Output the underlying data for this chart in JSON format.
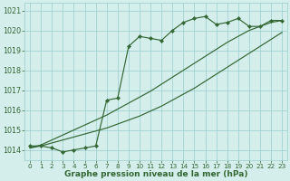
{
  "x": [
    0,
    1,
    2,
    3,
    4,
    5,
    6,
    7,
    8,
    9,
    10,
    11,
    12,
    13,
    14,
    15,
    16,
    17,
    18,
    19,
    20,
    21,
    22,
    23
  ],
  "line_marked": [
    1014.2,
    1014.2,
    1014.1,
    1013.9,
    1014.0,
    1014.1,
    1014.2,
    1016.5,
    1016.6,
    1019.2,
    1019.7,
    1019.6,
    1019.5,
    1020.0,
    1020.4,
    1020.6,
    1020.7,
    1020.3,
    1020.4,
    1020.6,
    1020.2,
    1020.2,
    1020.5,
    1020.5
  ],
  "line_trend_low": [
    1014.1,
    1014.2,
    1014.35,
    1014.5,
    1014.65,
    1014.8,
    1014.95,
    1015.1,
    1015.3,
    1015.5,
    1015.7,
    1015.95,
    1016.2,
    1016.5,
    1016.8,
    1017.1,
    1017.45,
    1017.8,
    1018.15,
    1018.5,
    1018.85,
    1019.2,
    1019.55,
    1019.9
  ],
  "line_trend_high": [
    1014.1,
    1014.25,
    1014.5,
    1014.75,
    1015.0,
    1015.25,
    1015.5,
    1015.75,
    1016.05,
    1016.35,
    1016.65,
    1016.95,
    1017.3,
    1017.65,
    1018.0,
    1018.35,
    1018.7,
    1019.05,
    1019.4,
    1019.7,
    1020.0,
    1020.2,
    1020.4,
    1020.5
  ],
  "line_color": "#336633",
  "bg_color": "#d4eeeb",
  "grid_color": "#99cccc",
  "ylabel_ticks": [
    1014,
    1015,
    1016,
    1017,
    1018,
    1019,
    1020,
    1021
  ],
  "xlabel_ticks": [
    0,
    1,
    2,
    3,
    4,
    5,
    6,
    7,
    8,
    9,
    10,
    11,
    12,
    13,
    14,
    15,
    16,
    17,
    18,
    19,
    20,
    21,
    22,
    23
  ],
  "ylim": [
    1013.5,
    1021.4
  ],
  "xlim": [
    -0.5,
    23.5
  ],
  "xlabel": "Graphe pression niveau de la mer (hPa)"
}
